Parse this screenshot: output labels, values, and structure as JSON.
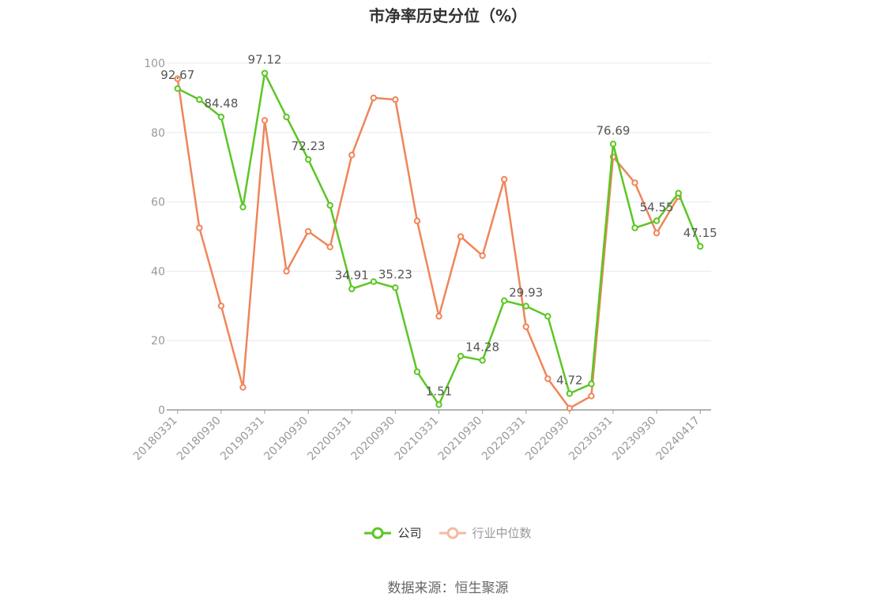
{
  "title": "市净率历史分位（%）",
  "source": "数据来源：恒生聚源",
  "colors": {
    "company": "#5cc625",
    "industry": "#f0855a",
    "industry_legend": "#f5b9a0"
  },
  "chart_data": {
    "type": "line",
    "title": "市净率历史分位（%）",
    "ylim": [
      0,
      100
    ],
    "yticks": [
      0,
      20,
      40,
      60,
      80,
      100
    ],
    "grid": true,
    "legend_position": "bottom",
    "x": [
      "20180331",
      "20180630",
      "20180930",
      "20181231",
      "20190331",
      "20190630",
      "20190930",
      "20191231",
      "20200331",
      "20200630",
      "20200930",
      "20201231",
      "20210331",
      "20210630",
      "20210930",
      "20211231",
      "20220331",
      "20220630",
      "20220930",
      "20221231",
      "20230331",
      "20230630",
      "20230930",
      "20231231",
      "20240417"
    ],
    "xtick_labels": [
      "20180331",
      "20180930",
      "20190331",
      "20190930",
      "20200331",
      "20200930",
      "20210331",
      "20210930",
      "20220331",
      "20220930",
      "20230331",
      "20230930",
      "20240417"
    ],
    "series": [
      {
        "name": "公司",
        "values": [
          92.67,
          89.5,
          84.48,
          58.5,
          97.12,
          84.5,
          72.23,
          59.0,
          34.91,
          37.0,
          35.23,
          11.0,
          1.51,
          15.5,
          14.28,
          31.5,
          29.93,
          27.0,
          4.72,
          7.5,
          76.69,
          52.5,
          54.55,
          62.5,
          47.15
        ]
      },
      {
        "name": "行业中位数",
        "values": [
          95.5,
          52.5,
          30.0,
          6.5,
          83.5,
          40.0,
          51.5,
          47.0,
          73.5,
          90.0,
          89.5,
          54.5,
          27.0,
          50.0,
          44.5,
          66.5,
          24.0,
          9.0,
          0.5,
          4.0,
          73.0,
          65.5,
          51.0,
          61.5,
          null
        ]
      }
    ],
    "data_labels": [
      {
        "series": 0,
        "index": 0,
        "text": "92.67"
      },
      {
        "series": 0,
        "index": 2,
        "text": "84.48"
      },
      {
        "series": 0,
        "index": 4,
        "text": "97.12"
      },
      {
        "series": 0,
        "index": 6,
        "text": "72.23"
      },
      {
        "series": 0,
        "index": 8,
        "text": "34.91"
      },
      {
        "series": 0,
        "index": 10,
        "text": "35.23"
      },
      {
        "series": 0,
        "index": 12,
        "text": "1.51"
      },
      {
        "series": 0,
        "index": 14,
        "text": "14.28"
      },
      {
        "series": 0,
        "index": 16,
        "text": "29.93"
      },
      {
        "series": 0,
        "index": 18,
        "text": "4.72"
      },
      {
        "series": 0,
        "index": 20,
        "text": "76.69"
      },
      {
        "series": 0,
        "index": 22,
        "text": "54.55"
      },
      {
        "series": 0,
        "index": 24,
        "text": "47.15"
      }
    ]
  }
}
